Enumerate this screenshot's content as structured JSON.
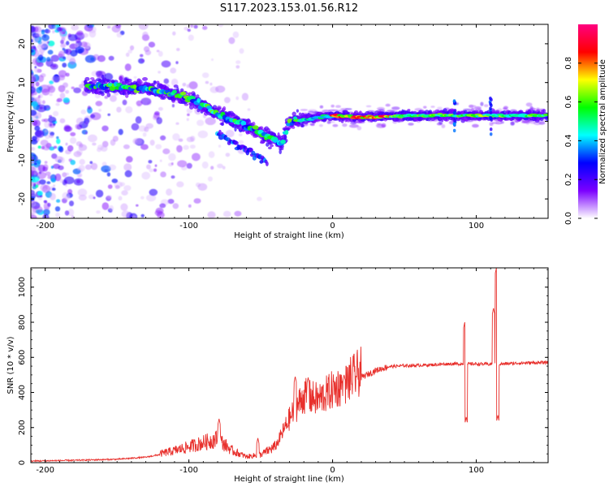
{
  "figure": {
    "title": "S117.2023.153.01.56.R12"
  },
  "chart_data": [
    {
      "type": "heatmap",
      "xlabel": "Height of straight line (km)",
      "ylabel": "Frequency (Hz)",
      "xlim": [
        -210,
        150
      ],
      "ylim": [
        -25,
        25
      ],
      "xticks": [
        -200,
        -100,
        0,
        100
      ],
      "yticks": [
        -20,
        -10,
        0,
        10,
        20
      ],
      "colorbar": {
        "label": "Normalized spectral amplitude",
        "range": [
          0,
          1
        ],
        "ticks": [
          0.0,
          0.2,
          0.4,
          0.6,
          0.8
        ],
        "colors": [
          "#ffffff",
          "#7b00ff",
          "#0000ff",
          "#00ffff",
          "#00ff00",
          "#ffff00",
          "#ff0000",
          "#ff0080"
        ]
      },
      "ridge": {
        "x": [
          -170,
          -150,
          -130,
          -110,
          -95,
          -80,
          -65,
          -50,
          -40,
          -35,
          -30,
          -20,
          -10,
          0,
          20,
          50,
          85,
          110,
          150
        ],
        "y": [
          9,
          9,
          8.5,
          7,
          5,
          2,
          -0.5,
          -3,
          -5,
          -6,
          0,
          0.5,
          1,
          1.5,
          1,
          1.5,
          1.5,
          1.5,
          1.5
        ]
      }
    },
    {
      "type": "line",
      "xlabel": "Height of straight line (km)",
      "ylabel": "SNR (10 * v/v)",
      "xlim": [
        -210,
        150
      ],
      "ylim": [
        0,
        1110
      ],
      "xticks": [
        -200,
        -100,
        0,
        100
      ],
      "yticks": [
        0,
        200,
        400,
        600,
        800,
        1000
      ],
      "line_color": "#e8302c",
      "envelope": {
        "x": [
          -210,
          -180,
          -150,
          -130,
          -110,
          -100,
          -90,
          -80,
          -70,
          -60,
          -50,
          -40,
          -30,
          -20,
          -10,
          0,
          10,
          20,
          30,
          40,
          50,
          60,
          70,
          80,
          90,
          93,
          100,
          110,
          112,
          113,
          115,
          120,
          130,
          150
        ],
        "y": [
          8,
          12,
          18,
          30,
          60,
          80,
          100,
          120,
          60,
          30,
          40,
          80,
          230,
          350,
          330,
          380,
          420,
          480,
          520,
          545,
          550,
          552,
          555,
          560,
          560,
          560,
          560,
          558,
          562,
          560,
          560,
          560,
          565,
          568
        ]
      },
      "spikes": [
        {
          "x": -79,
          "y": 250
        },
        {
          "x": -52,
          "y": 140
        },
        {
          "x": -26,
          "y": 490
        },
        {
          "x": -17,
          "y": 485
        },
        {
          "x": 8,
          "y": 500
        },
        {
          "x": 92,
          "y": 800
        },
        {
          "x": 93,
          "y": 260
        },
        {
          "x": 112,
          "y": 880
        },
        {
          "x": 114,
          "y": 1110
        },
        {
          "x": 115,
          "y": 270
        }
      ]
    }
  ]
}
